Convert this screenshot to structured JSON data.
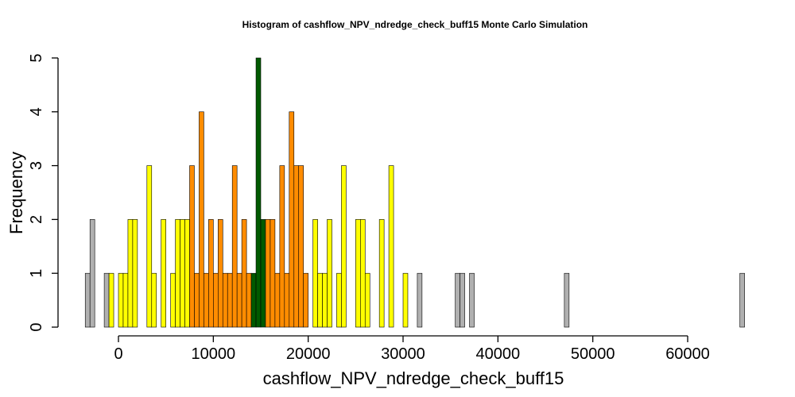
{
  "chart_data": {
    "type": "bar",
    "title": "Histogram of  cashflow_NPV_ndredge_check_buff15  Monte Carlo Simulation",
    "xlabel": "cashflow_NPV_ndredge_check_buff15",
    "ylabel": "Frequency",
    "xlim": [
      -3600,
      66200
    ],
    "ylim": [
      0,
      5
    ],
    "x_ticks": [
      0,
      10000,
      20000,
      30000,
      40000,
      50000,
      60000
    ],
    "y_ticks": [
      0,
      1,
      2,
      3,
      4,
      5
    ],
    "bin_width": 500,
    "bin_start": -3500,
    "colors": {
      "gray": "#b0b0b0",
      "yellow": "#ffff00",
      "orange": "#ff8c00",
      "green": "#005a00"
    },
    "bins": [
      {
        "x": -3500,
        "count": 1,
        "color": "gray"
      },
      {
        "x": -3000,
        "count": 2,
        "color": "gray"
      },
      {
        "x": -1500,
        "count": 1,
        "color": "gray"
      },
      {
        "x": -1000,
        "count": 1,
        "color": "yellow"
      },
      {
        "x": 0,
        "count": 1,
        "color": "yellow"
      },
      {
        "x": 500,
        "count": 1,
        "color": "yellow"
      },
      {
        "x": 1000,
        "count": 2,
        "color": "yellow"
      },
      {
        "x": 1500,
        "count": 2,
        "color": "yellow"
      },
      {
        "x": 3000,
        "count": 3,
        "color": "yellow"
      },
      {
        "x": 3500,
        "count": 1,
        "color": "yellow"
      },
      {
        "x": 4000,
        "count": 0,
        "color": "yellow"
      },
      {
        "x": 4500,
        "count": 2,
        "color": "yellow"
      },
      {
        "x": 5500,
        "count": 1,
        "color": "yellow"
      },
      {
        "x": 6000,
        "count": 2,
        "color": "yellow"
      },
      {
        "x": 6500,
        "count": 2,
        "color": "yellow"
      },
      {
        "x": 7000,
        "count": 2,
        "color": "yellow"
      },
      {
        "x": 7500,
        "count": 3,
        "color": "orange"
      },
      {
        "x": 8000,
        "count": 1,
        "color": "orange"
      },
      {
        "x": 8500,
        "count": 4,
        "color": "orange"
      },
      {
        "x": 9000,
        "count": 1,
        "color": "orange"
      },
      {
        "x": 9500,
        "count": 2,
        "color": "orange"
      },
      {
        "x": 10000,
        "count": 1,
        "color": "orange"
      },
      {
        "x": 10500,
        "count": 2,
        "color": "orange"
      },
      {
        "x": 11000,
        "count": 1,
        "color": "orange"
      },
      {
        "x": 11500,
        "count": 1,
        "color": "orange"
      },
      {
        "x": 12000,
        "count": 3,
        "color": "orange"
      },
      {
        "x": 12500,
        "count": 1,
        "color": "orange"
      },
      {
        "x": 13000,
        "count": 2,
        "color": "orange"
      },
      {
        "x": 13500,
        "count": 1,
        "color": "orange"
      },
      {
        "x": 14000,
        "count": 1,
        "color": "green"
      },
      {
        "x": 14500,
        "count": 5,
        "color": "green"
      },
      {
        "x": 15000,
        "count": 2,
        "color": "green"
      },
      {
        "x": 15500,
        "count": 2,
        "color": "orange"
      },
      {
        "x": 16000,
        "count": 2,
        "color": "orange"
      },
      {
        "x": 16500,
        "count": 1,
        "color": "orange"
      },
      {
        "x": 17000,
        "count": 3,
        "color": "orange"
      },
      {
        "x": 17500,
        "count": 1,
        "color": "orange"
      },
      {
        "x": 18000,
        "count": 4,
        "color": "orange"
      },
      {
        "x": 18500,
        "count": 3,
        "color": "orange"
      },
      {
        "x": 19000,
        "count": 3,
        "color": "orange"
      },
      {
        "x": 19500,
        "count": 1,
        "color": "orange"
      },
      {
        "x": 20000,
        "count": 0,
        "color": "yellow"
      },
      {
        "x": 20500,
        "count": 2,
        "color": "yellow"
      },
      {
        "x": 21000,
        "count": 1,
        "color": "yellow"
      },
      {
        "x": 21500,
        "count": 1,
        "color": "yellow"
      },
      {
        "x": 22000,
        "count": 2,
        "color": "yellow"
      },
      {
        "x": 23000,
        "count": 1,
        "color": "yellow"
      },
      {
        "x": 23500,
        "count": 3,
        "color": "yellow"
      },
      {
        "x": 25000,
        "count": 2,
        "color": "yellow"
      },
      {
        "x": 25500,
        "count": 2,
        "color": "yellow"
      },
      {
        "x": 26000,
        "count": 1,
        "color": "yellow"
      },
      {
        "x": 27500,
        "count": 2,
        "color": "yellow"
      },
      {
        "x": 28500,
        "count": 3,
        "color": "yellow"
      },
      {
        "x": 30000,
        "count": 1,
        "color": "yellow"
      },
      {
        "x": 31500,
        "count": 1,
        "color": "gray"
      },
      {
        "x": 35500,
        "count": 1,
        "color": "gray"
      },
      {
        "x": 36000,
        "count": 1,
        "color": "gray"
      },
      {
        "x": 37000,
        "count": 1,
        "color": "gray"
      },
      {
        "x": 47000,
        "count": 1,
        "color": "gray"
      },
      {
        "x": 65500,
        "count": 1,
        "color": "gray"
      }
    ],
    "grid": false,
    "legend": "none"
  }
}
